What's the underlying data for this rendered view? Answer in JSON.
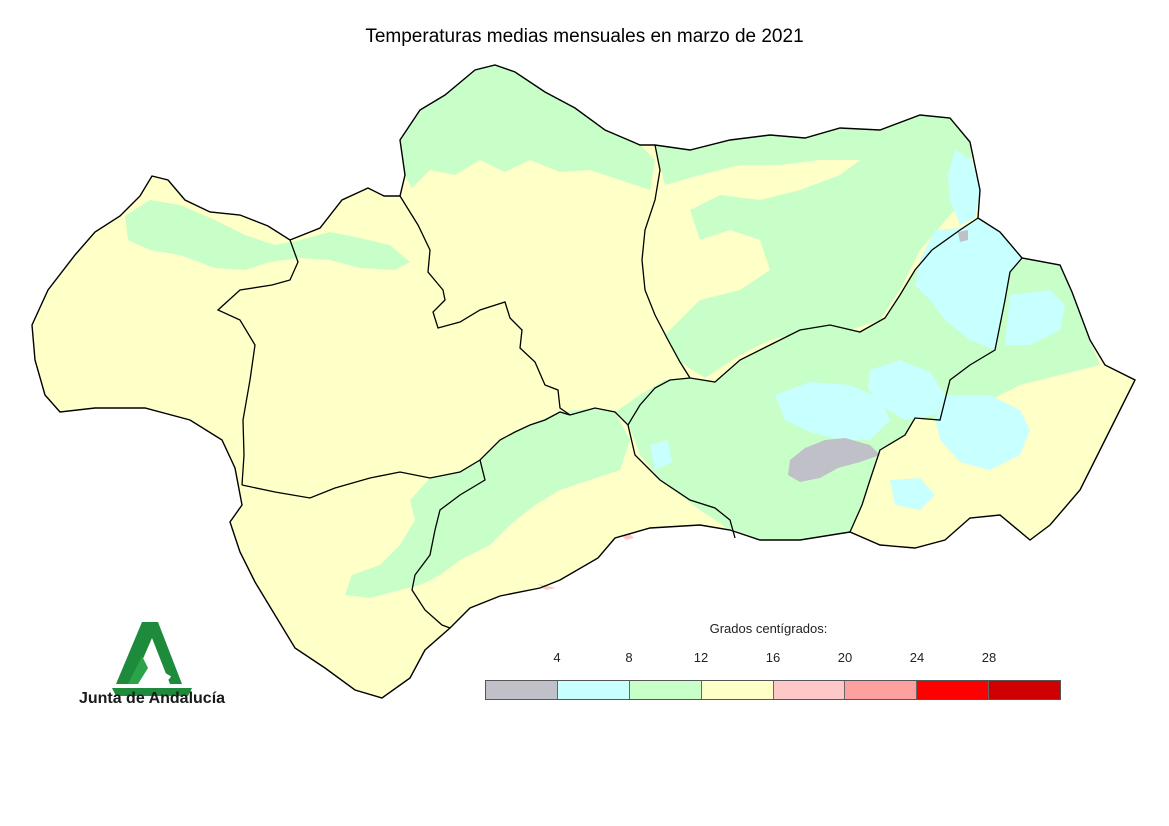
{
  "title": "Temperaturas medias mensuales en marzo de 2021",
  "legend": {
    "title": "Grados centígrados:",
    "ticks": [
      "4",
      "8",
      "12",
      "16",
      "20",
      "24",
      "28"
    ],
    "colors": [
      "#c0c0c8",
      "#c8ffff",
      "#c8ffc8",
      "#ffffc8",
      "#ffc8c8",
      "#ffa0a0",
      "#ff0000",
      "#d00000"
    ]
  },
  "logo": {
    "text": "Junta de Andalucía",
    "icon": "junta-andalucia-logo-icon"
  },
  "map_colors": {
    "cold": "#c0c0c8",
    "cool": "#c8ffff",
    "mild": "#c8ffc8",
    "warm": "#ffffc8",
    "hot": "#ffc8c8",
    "border": "#000000"
  }
}
